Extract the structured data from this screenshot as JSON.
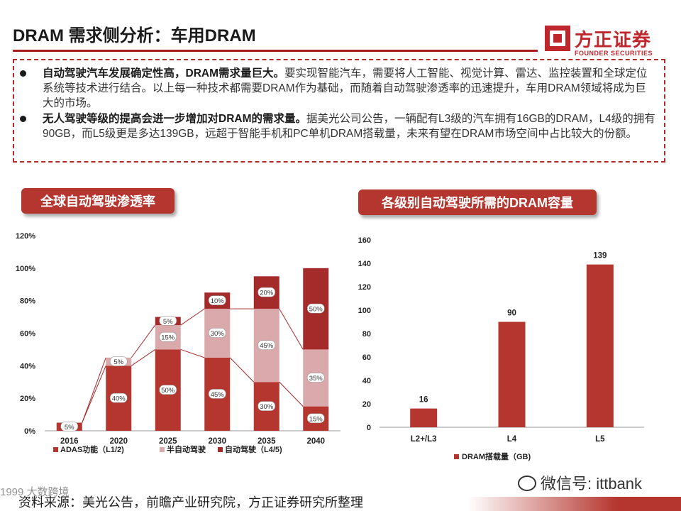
{
  "slide": {
    "title": "DRAM 需求侧分析：车用DRAM",
    "logo_cn": "方正证券",
    "logo_en": "FOUNDER SECURITIES",
    "bullets": [
      {
        "bold": "自动驾驶汽车发展确定性高，DRAM需求量巨大。",
        "text": "要实现智能汽车，需要将人工智能、视觉计算、雷达、监控装置和全球定位系统等技术进行结合。以上每一种技术都需要DRAM作为基础，而随着自动驾驶渗透率的迅速提升，车用DRAM领域将成为巨大的市场。"
      },
      {
        "bold": "无人驾驶等级的提高会进一步增加对DRAM的需求量。",
        "text": "据美光公司公告，一辆配有L3级的汽车拥有16GB的DRAM，L4级的拥有90GB，而L5级更是多达139GB，远超于智能手机和PC单机DRAM搭载量，未来有望在DRAM市场空间中占比较大的份额。"
      }
    ],
    "left_pill": "全球自动驾驶渗透率",
    "right_pill": "各级别自动驾驶所需的DRAM容量",
    "source": "资料来源：美光公告，前瞻产业研究院，方正证券研究所整理",
    "wechat": "微信号: ittbank",
    "corner_mark": "1999 大数跨境"
  },
  "chart_data": [
    {
      "type": "bar",
      "stacked": true,
      "title": "全球自动驾驶渗透率",
      "categories": [
        "2016",
        "2020",
        "2025",
        "2030",
        "2035",
        "2040"
      ],
      "series": [
        {
          "name": "ADAS功能（L1/2)",
          "color": "#b5362f",
          "values": [
            5,
            40,
            50,
            45,
            30,
            15
          ],
          "labels": [
            "5%",
            "40%",
            "50%",
            "45%",
            "30%",
            "15%"
          ]
        },
        {
          "name": "半自动驾驶",
          "color": "#d9a9ac",
          "values": [
            0,
            5,
            15,
            30,
            45,
            35
          ],
          "labels": [
            "",
            "5%",
            "15%",
            "30%",
            "45%",
            "35%"
          ]
        },
        {
          "name": "自动驾驶（L4/5)",
          "color": "#a52a2a",
          "values": [
            0,
            0,
            5,
            10,
            20,
            50
          ],
          "labels": [
            "",
            "",
            "5%",
            "10%",
            "20%",
            "50%"
          ]
        }
      ],
      "yticks": [
        "0%",
        "20%",
        "40%",
        "60%",
        "80%",
        "100%",
        "120%"
      ],
      "ylim": [
        0,
        120
      ],
      "legend": [
        "ADAS功能（L1/2)",
        "半自动驾驶",
        "自动驾驶（L4/5)"
      ]
    },
    {
      "type": "bar",
      "title": "各级别自动驾驶所需的DRAM容量",
      "categories": [
        "L2+/L3",
        "L4",
        "L5"
      ],
      "values": [
        16,
        90,
        139
      ],
      "value_labels": [
        "16",
        "90",
        "139"
      ],
      "yticks": [
        "0",
        "20",
        "40",
        "60",
        "80",
        "100",
        "120",
        "140",
        "160"
      ],
      "ylim": [
        0,
        160
      ],
      "legend": "DRAM搭载量（GB)",
      "color": "#b5362f"
    }
  ]
}
